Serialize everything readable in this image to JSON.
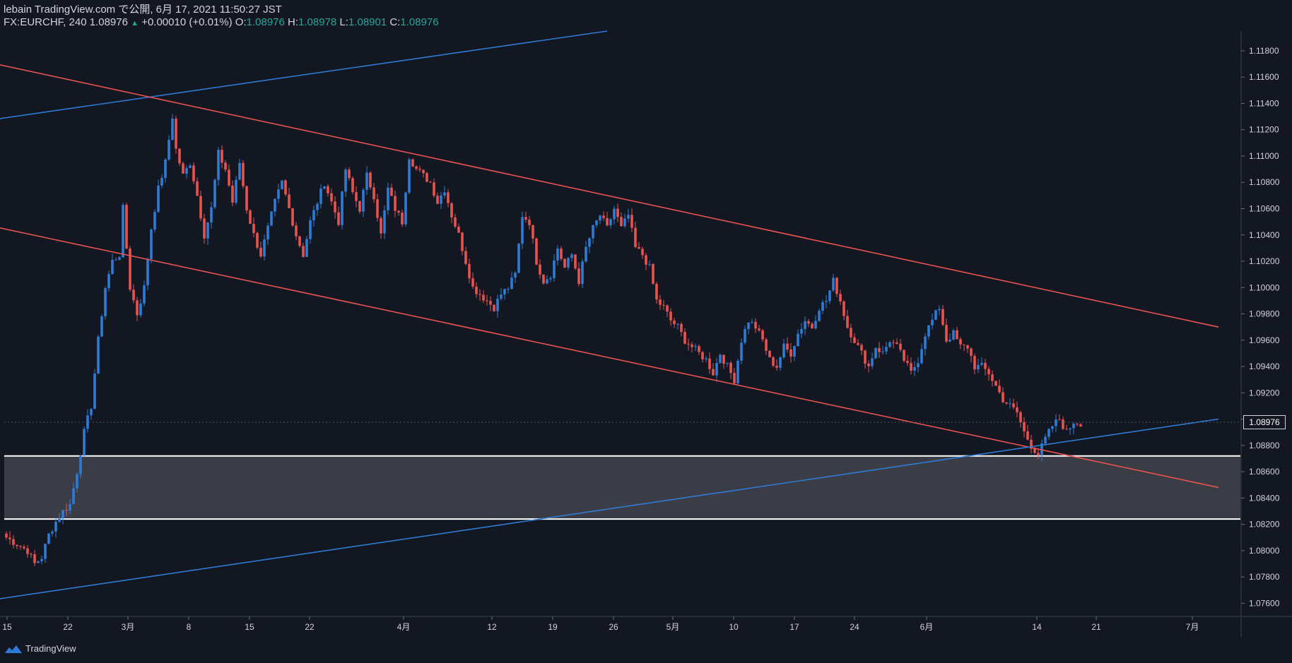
{
  "header": {
    "line1": "lebain TradingView.com で公開, 6月 17, 2021 11:50:27 JST",
    "symbol": "FX:EURCHF, 240",
    "last": "1.08976",
    "up_arrow": "▲",
    "change": "+0.00010 (+0.01%)",
    "o_label": " O:",
    "o_value": "1.08976",
    "h_label": " H:",
    "h_value": "1.08978",
    "l_label": " L:",
    "l_value": "1.08901",
    "c_label": " C:",
    "c_value": "1.08976"
  },
  "footer": {
    "brand": "TradingView",
    "logo_icon": "tradingview-logo-icon"
  },
  "current_price_label": "1.08976",
  "colors": {
    "background": "#131722",
    "up": "#2e7bd6",
    "down": "#e8534f",
    "trend_blue": "#2e7bd6",
    "trend_red": "#e8534f",
    "zone": "#3a3d45"
  },
  "chart_data": {
    "type": "candlestick",
    "ylim": [
      1.075,
      1.1195
    ],
    "y_ticks": [
      "1.07600",
      "1.07800",
      "1.08000",
      "1.08200",
      "1.08400",
      "1.08600",
      "1.08800",
      "1.09000",
      "1.09200",
      "1.09400",
      "1.09600",
      "1.09800",
      "1.10000",
      "1.10200",
      "1.10400",
      "1.10600",
      "1.10800",
      "1.11000",
      "1.11200",
      "1.11400",
      "1.11600",
      "1.11800"
    ],
    "x_ticks": [
      "15",
      "22",
      "3月",
      "8",
      "15",
      "22",
      "4月",
      "12",
      "19",
      "26",
      "5月",
      "10",
      "17",
      "24",
      "6月",
      "14",
      "21",
      "7月"
    ],
    "close_path": [
      [
        0,
        1.081
      ],
      [
        3,
        1.0805
      ],
      [
        6,
        1.08
      ],
      [
        8,
        1.079
      ],
      [
        10,
        1.0795
      ],
      [
        12,
        1.0812
      ],
      [
        14,
        1.0822
      ],
      [
        16,
        1.083
      ],
      [
        18,
        1.0835
      ],
      [
        20,
        1.086
      ],
      [
        22,
        1.089
      ],
      [
        24,
        1.091
      ],
      [
        26,
        1.096
      ],
      [
        28,
        1.1
      ],
      [
        30,
        1.102
      ],
      [
        32,
        1.1025
      ],
      [
        33,
        1.106
      ],
      [
        35,
        1.1
      ],
      [
        37,
        1.098
      ],
      [
        39,
        1.1
      ],
      [
        41,
        1.1045
      ],
      [
        43,
        1.1075
      ],
      [
        45,
        1.1095
      ],
      [
        47,
        1.113
      ],
      [
        48,
        1.1105
      ],
      [
        50,
        1.1085
      ],
      [
        52,
        1.1095
      ],
      [
        54,
        1.107
      ],
      [
        56,
        1.104
      ],
      [
        58,
        1.106
      ],
      [
        60,
        1.1102
      ],
      [
        62,
        1.109
      ],
      [
        64,
        1.1065
      ],
      [
        66,
        1.1095
      ],
      [
        68,
        1.106
      ],
      [
        70,
        1.104
      ],
      [
        72,
        1.1025
      ],
      [
        74,
        1.1045
      ],
      [
        76,
        1.1065
      ],
      [
        78,
        1.108
      ],
      [
        80,
        1.106
      ],
      [
        82,
        1.104
      ],
      [
        84,
        1.1025
      ],
      [
        86,
        1.105
      ],
      [
        88,
        1.1065
      ],
      [
        90,
        1.108
      ],
      [
        92,
        1.1065
      ],
      [
        94,
        1.105
      ],
      [
        96,
        1.109
      ],
      [
        98,
        1.1072
      ],
      [
        100,
        1.106
      ],
      [
        102,
        1.1085
      ],
      [
        104,
        1.107
      ],
      [
        106,
        1.104
      ],
      [
        108,
        1.1075
      ],
      [
        110,
        1.106
      ],
      [
        112,
        1.105
      ],
      [
        114,
        1.11
      ],
      [
        116,
        1.109
      ],
      [
        118,
        1.1085
      ],
      [
        120,
        1.108
      ],
      [
        122,
        1.1065
      ],
      [
        124,
        1.1075
      ],
      [
        126,
        1.1055
      ],
      [
        128,
        1.104
      ],
      [
        130,
        1.102
      ],
      [
        132,
        1.1
      ],
      [
        134,
        1.0995
      ],
      [
        136,
        1.099
      ],
      [
        138,
        1.0985
      ],
      [
        140,
        1.0995
      ],
      [
        142,
        1.1
      ],
      [
        144,
        1.101
      ],
      [
        146,
        1.1055
      ],
      [
        148,
        1.105
      ],
      [
        150,
        1.102
      ],
      [
        152,
        1.1005
      ],
      [
        154,
        1.101
      ],
      [
        156,
        1.103
      ],
      [
        158,
        1.1015
      ],
      [
        160,
        1.1025
      ],
      [
        162,
        1.1005
      ],
      [
        164,
        1.103
      ],
      [
        166,
        1.1045
      ],
      [
        168,
        1.1055
      ],
      [
        170,
        1.1045
      ],
      [
        172,
        1.106
      ],
      [
        174,
        1.1045
      ],
      [
        176,
        1.1055
      ],
      [
        178,
        1.103
      ],
      [
        180,
        1.1025
      ],
      [
        182,
        1.1015
      ],
      [
        184,
        1.099
      ],
      [
        186,
        1.0985
      ],
      [
        188,
        1.0975
      ],
      [
        190,
        1.097
      ],
      [
        192,
        1.096
      ],
      [
        194,
        1.0955
      ],
      [
        196,
        1.095
      ],
      [
        198,
        1.0945
      ],
      [
        200,
        1.0935
      ],
      [
        202,
        1.095
      ],
      [
        204,
        1.094
      ],
      [
        206,
        1.093
      ],
      [
        208,
        1.096
      ],
      [
        210,
        1.0975
      ],
      [
        212,
        1.097
      ],
      [
        214,
        1.096
      ],
      [
        216,
        1.0945
      ],
      [
        218,
        1.094
      ],
      [
        220,
        1.0955
      ],
      [
        222,
        1.095
      ],
      [
        224,
        1.0965
      ],
      [
        226,
        1.0975
      ],
      [
        228,
        1.097
      ],
      [
        230,
        1.0985
      ],
      [
        232,
        1.099
      ],
      [
        234,
        1.1005
      ],
      [
        236,
        1.099
      ],
      [
        238,
        1.097
      ],
      [
        240,
        1.096
      ],
      [
        242,
        1.095
      ],
      [
        244,
        1.094
      ],
      [
        246,
        1.0955
      ],
      [
        248,
        1.095
      ],
      [
        250,
        1.096
      ],
      [
        252,
        1.0955
      ],
      [
        254,
        1.0945
      ],
      [
        256,
        1.0935
      ],
      [
        258,
        1.0945
      ],
      [
        260,
        1.0965
      ],
      [
        262,
        1.0975
      ],
      [
        264,
        1.0985
      ],
      [
        266,
        1.096
      ],
      [
        268,
        1.0965
      ],
      [
        270,
        1.0955
      ],
      [
        272,
        1.0955
      ],
      [
        274,
        1.094
      ],
      [
        276,
        1.094
      ],
      [
        278,
        1.0935
      ],
      [
        280,
        1.0925
      ],
      [
        282,
        1.0915
      ],
      [
        284,
        1.091
      ],
      [
        286,
        1.0905
      ],
      [
        288,
        1.089
      ],
      [
        290,
        1.088
      ],
      [
        292,
        1.0873
      ],
      [
        294,
        1.0885
      ],
      [
        296,
        1.0895
      ],
      [
        298,
        1.09
      ],
      [
        300,
        1.089
      ],
      [
        302,
        1.0898
      ],
      [
        304,
        1.0897
      ]
    ],
    "trendlines": [
      {
        "color": "blue",
        "from": [
          -3,
          1.1128
        ],
        "to": [
          170,
          1.1195
        ]
      },
      {
        "color": "red",
        "from": [
          -3,
          1.117
        ],
        "to": [
          343,
          1.097
        ]
      },
      {
        "color": "red",
        "from": [
          -3,
          1.1046
        ],
        "to": [
          343,
          1.0848
        ]
      },
      {
        "color": "blue",
        "from": [
          -3,
          1.0763
        ],
        "to": [
          343,
          1.09
        ]
      }
    ],
    "zone": {
      "top": 1.0872,
      "bottom": 1.0824
    },
    "current_price": 1.08976
  }
}
